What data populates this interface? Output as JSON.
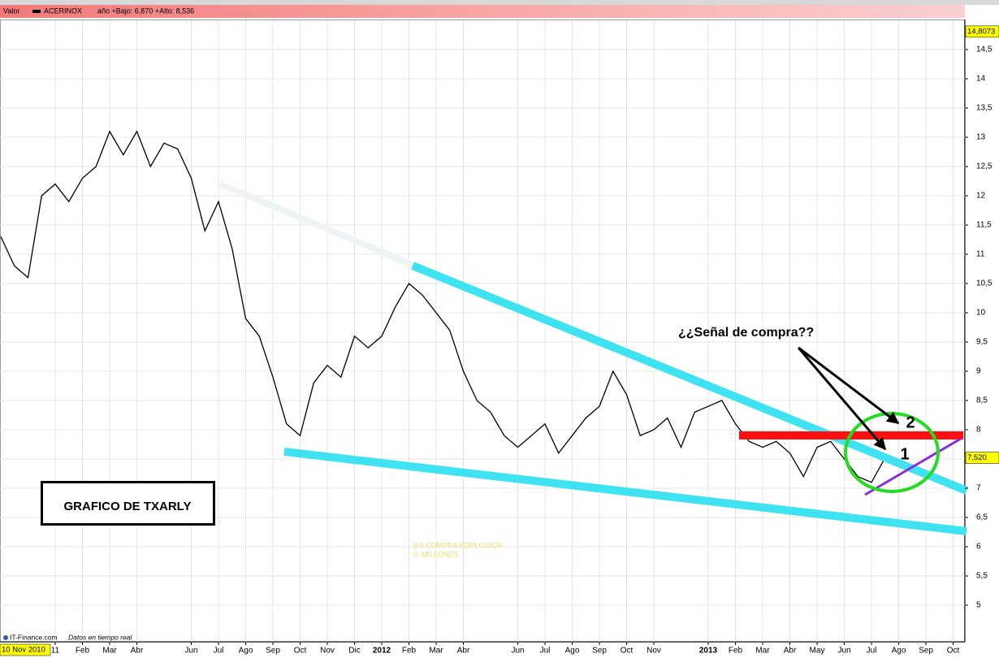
{
  "chart_data": {
    "type": "line",
    "legend_title": "Valor",
    "title": "ACERINOX",
    "subtitle": "año +Bajo: 6,870 +Alto: 8,536",
    "cursor_date": "10 Nov 2010",
    "source": "IT-Finance.com",
    "source_note": "Datos en tiempo real",
    "annotations": [
      "¿¿Señal de compra??",
      "GRAFICO DE TXARLY",
      "8.0 COMPRA KOPLOVICH",
      "0, MILLONES",
      "1",
      "2"
    ],
    "categories": [
      null,
      null,
      null,
      null,
      "11",
      null,
      "Feb",
      null,
      "Mar",
      null,
      "Abr",
      null,
      null,
      null,
      "Jun",
      null,
      "Jul",
      null,
      "Ago",
      null,
      "Sep",
      null,
      "Oct",
      null,
      "Nov",
      null,
      "Dic",
      null,
      "2012",
      null,
      "Feb",
      null,
      "Mar",
      null,
      "Abr",
      null,
      null,
      null,
      "Jun",
      null,
      "Jul",
      null,
      "Ago",
      null,
      "Sep",
      null,
      "Oct",
      null,
      "Nov",
      null,
      null,
      null,
      "2013",
      null,
      "Feb",
      null,
      "Mar",
      null,
      "Abr",
      null,
      "May",
      null,
      "Jun",
      null,
      "Jul",
      null,
      "Ago",
      null,
      "Sep",
      null,
      "Oct",
      null
    ],
    "series": [
      {
        "name": "ACERINOX",
        "color": "#000000",
        "values": [
          11.3,
          10.8,
          10.6,
          12.0,
          12.2,
          11.9,
          12.3,
          12.5,
          13.1,
          12.7,
          13.1,
          12.5,
          12.9,
          12.8,
          12.3,
          11.4,
          11.9,
          11.1,
          9.9,
          9.6,
          8.9,
          8.1,
          7.9,
          8.8,
          9.1,
          8.9,
          9.6,
          9.4,
          9.6,
          10.1,
          10.5,
          10.3,
          10.0,
          9.7,
          9.0,
          8.5,
          8.3,
          7.9,
          7.7,
          7.9,
          8.1,
          7.6,
          7.9,
          8.2,
          8.4,
          9.0,
          8.6,
          7.9,
          8.0,
          8.2,
          7.7,
          8.3,
          8.4,
          8.5,
          8.1,
          7.8,
          7.7,
          7.8,
          7.6,
          7.2,
          7.7,
          7.8,
          7.5,
          7.2,
          7.1,
          7.52,
          null,
          null,
          null,
          null,
          null,
          null
        ]
      }
    ],
    "ylim": [
      4.375,
      15.0
    ],
    "yticks": [
      5,
      {
        "value": 5.5,
        "label": "5,5"
      },
      6,
      {
        "value": 6.5,
        "label": "6,5"
      },
      7,
      {
        "value": 7.5,
        "label": "7,5"
      },
      8,
      {
        "value": 8.5,
        "label": "8,5"
      },
      9,
      {
        "value": 9.5,
        "label": "9,5"
      },
      10,
      {
        "value": 10.5,
        "label": "10,5"
      },
      11,
      {
        "value": 11.5,
        "label": "11,5"
      },
      12,
      {
        "value": 12.5,
        "label": "12,5"
      },
      13,
      {
        "value": 13.5,
        "label": "13,5"
      },
      14,
      {
        "value": 14.5,
        "label": "14,5"
      }
    ],
    "markers": [
      {
        "value": 14.8073,
        "label": "14,8073"
      },
      {
        "value": 7.52,
        "label": "7,520"
      }
    ],
    "grid": true
  }
}
